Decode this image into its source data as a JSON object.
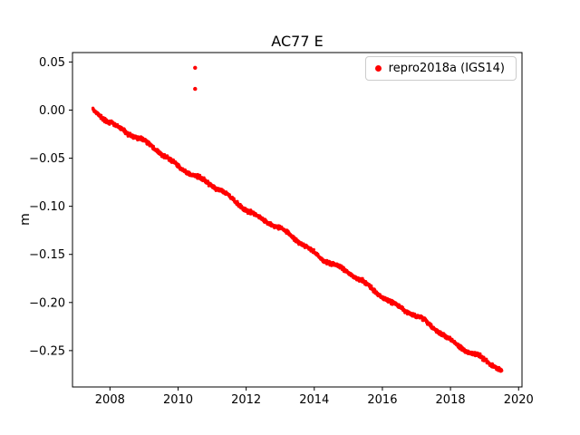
{
  "figure": {
    "background": "#ffffff"
  },
  "chart_data": {
    "type": "scatter",
    "title": "AC77 E",
    "xlabel": "",
    "ylabel": "m",
    "xlim": [
      2006.9,
      2020.1
    ],
    "ylim": [
      -0.2878,
      0.0598
    ],
    "xticks": [
      2008,
      2010,
      2012,
      2014,
      2016,
      2018,
      2020
    ],
    "yticks": [
      0.05,
      0.0,
      -0.05,
      -0.1,
      -0.15,
      -0.2,
      -0.25
    ],
    "grid": false,
    "legend_position": "upper right",
    "series": [
      {
        "name": "repro2018a (IGS14)",
        "color": "#ff0000",
        "marker": "dot",
        "trend": {
          "x_start": 2007.5,
          "y_start": 0.0,
          "x_end": 2019.5,
          "y_end": -0.272,
          "points_per_year": 140,
          "noise_sigma": 0.0018
        },
        "sampled_points": [
          [
            2007.5,
            0.0
          ],
          [
            2008.0,
            -0.011
          ],
          [
            2008.5,
            -0.023
          ],
          [
            2009.0,
            -0.034
          ],
          [
            2009.5,
            -0.045
          ],
          [
            2010.0,
            -0.057
          ],
          [
            2010.5,
            -0.068
          ],
          [
            2011.0,
            -0.079
          ],
          [
            2011.5,
            -0.091
          ],
          [
            2012.0,
            -0.102
          ],
          [
            2012.5,
            -0.113
          ],
          [
            2013.0,
            -0.125
          ],
          [
            2013.5,
            -0.136
          ],
          [
            2014.0,
            -0.147
          ],
          [
            2014.5,
            -0.159
          ],
          [
            2015.0,
            -0.17
          ],
          [
            2015.5,
            -0.181
          ],
          [
            2016.0,
            -0.193
          ],
          [
            2016.5,
            -0.204
          ],
          [
            2017.0,
            -0.215
          ],
          [
            2017.5,
            -0.227
          ],
          [
            2018.0,
            -0.238
          ],
          [
            2018.5,
            -0.249
          ],
          [
            2019.0,
            -0.261
          ],
          [
            2019.5,
            -0.272
          ]
        ],
        "outliers": [
          [
            2010.5,
            0.044
          ],
          [
            2010.5,
            0.022
          ]
        ]
      }
    ]
  }
}
